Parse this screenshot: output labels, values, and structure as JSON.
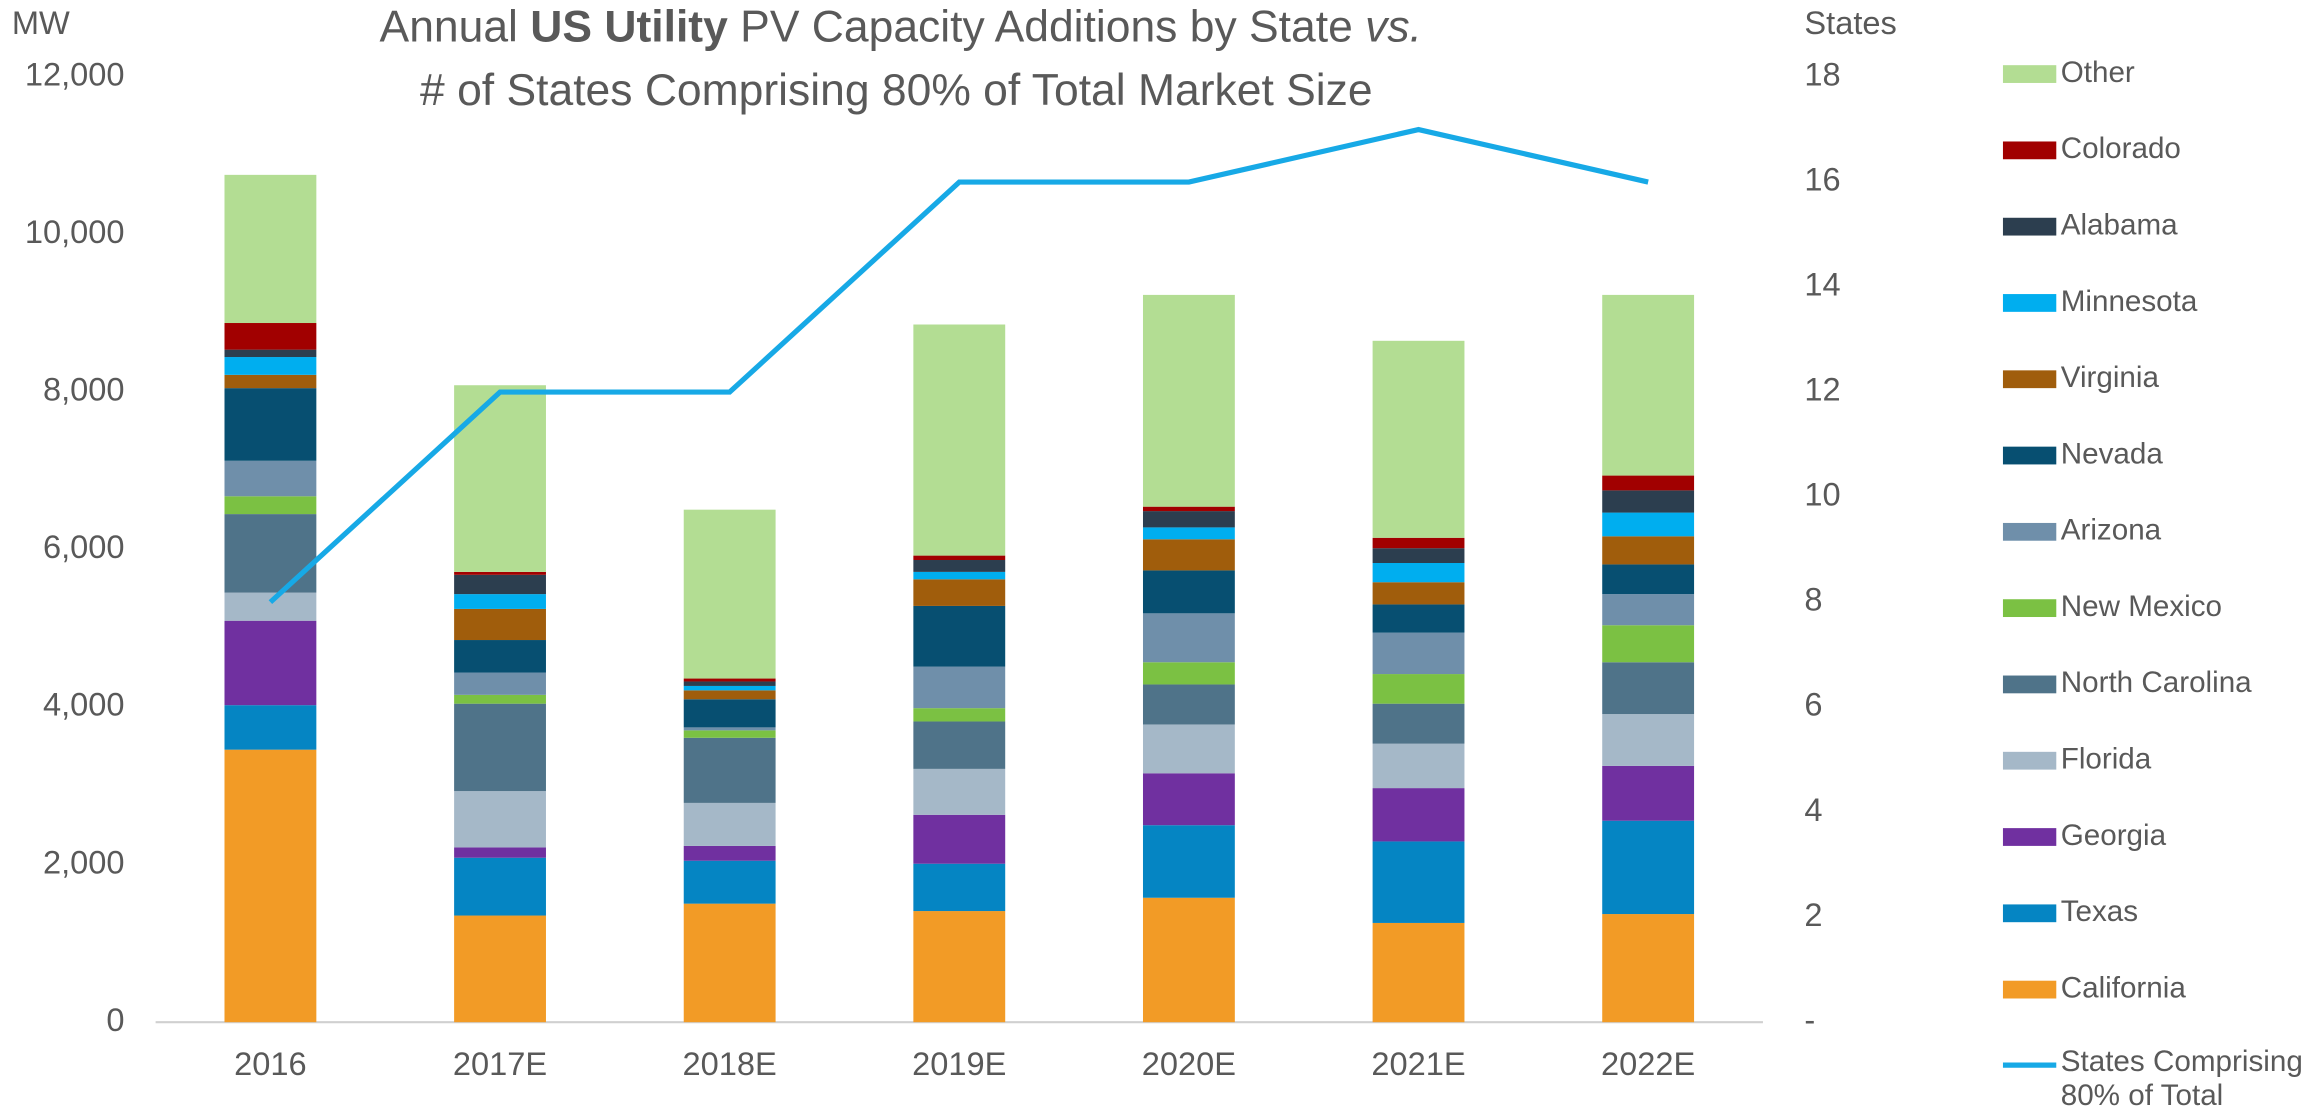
{
  "chart_data": {
    "type": "stacked-bar-line",
    "title": [
      "Annual",
      "US Utility",
      "PV Capacity Additions by State",
      "vs.",
      "# of States Comprising 80% of Total Market Size"
    ],
    "y_label": "MW",
    "y2_label": "States",
    "categories": [
      "2016",
      "2017E",
      "2018E",
      "2019E",
      "2020E",
      "2021E",
      "2022E"
    ],
    "ylim": [
      0,
      12000
    ],
    "yticks": [
      0,
      {
        "value": 2000,
        "label": "2,000"
      },
      {
        "value": 4000,
        "label": "4,000"
      },
      {
        "value": 6000,
        "label": "6,000"
      },
      {
        "value": 8000,
        "label": "8,000"
      },
      {
        "value": 10000,
        "label": "10,000"
      },
      {
        "value": 12000,
        "label": "12,000"
      }
    ],
    "y2lim": [
      0,
      18
    ],
    "y2ticks": [
      {
        "value": 0,
        "label": "-"
      },
      2,
      4,
      6,
      8,
      10,
      12,
      14,
      16,
      18
    ],
    "grid": false,
    "legend": "right",
    "series": [
      {
        "name": "California",
        "color": "#f29b26",
        "values": [
          3460,
          1354,
          1505,
          1411,
          1580,
          1260,
          1373
        ]
      },
      {
        "name": "Texas",
        "color": "#0585c3",
        "values": [
          565,
          734,
          545,
          601,
          921,
          1035,
          1185
        ]
      },
      {
        "name": "Georgia",
        "color": "#7030a0",
        "values": [
          1072,
          131,
          188,
          621,
          659,
          677,
          696
        ]
      },
      {
        "name": "Florida",
        "color": "#a5b8c8",
        "values": [
          357,
          715,
          546,
          583,
          620,
          564,
          658
        ]
      },
      {
        "name": "North Carolina",
        "color": "#4f7389",
        "values": [
          997,
          1110,
          827,
          602,
          508,
          508,
          658
        ]
      },
      {
        "name": "New Mexico",
        "color": "#7bc143",
        "values": [
          226,
          112,
          94,
          169,
          282,
          376,
          470
        ]
      },
      {
        "name": "Arizona",
        "color": "#6f8faa",
        "values": [
          451,
          283,
          38,
          527,
          621,
          526,
          395
        ]
      },
      {
        "name": "Nevada",
        "color": "#074f71",
        "values": [
          922,
          413,
          357,
          771,
          545,
          358,
          377
        ]
      },
      {
        "name": "Virginia",
        "color": "#a05d0c",
        "values": [
          169,
          395,
          113,
          338,
          395,
          282,
          357
        ]
      },
      {
        "name": "Minnesota",
        "color": "#00aeef",
        "values": [
          226,
          188,
          56,
          94,
          151,
          244,
          301
        ]
      },
      {
        "name": "Alabama",
        "color": "#2c3e4f",
        "values": [
          94,
          245,
          57,
          151,
          207,
          188,
          282
        ]
      },
      {
        "name": "Colorado",
        "color": "#a10000",
        "values": [
          338,
          37,
          37,
          56,
          56,
          132,
          188
        ]
      },
      {
        "name": "Other",
        "color": "#b3dd93",
        "values": [
          1881,
          2370,
          2144,
          2934,
          2689,
          2501,
          2294
        ]
      },
      {
        "name": "States Comprising 80% of Total",
        "color": "#17a9e6",
        "axis": "y2",
        "type": "line",
        "values": [
          8,
          12,
          12,
          16,
          16,
          17,
          16
        ]
      }
    ]
  }
}
